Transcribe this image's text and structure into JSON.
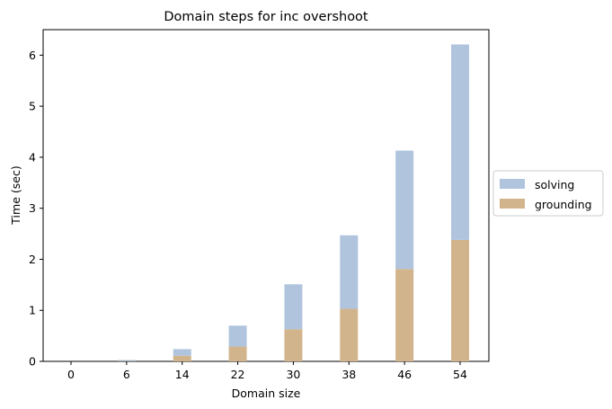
{
  "chart_data": {
    "type": "bar",
    "stacked": true,
    "title": "Domain steps for inc overshoot",
    "xlabel": "Domain size",
    "ylabel": "Time (sec)",
    "categories": [
      "0",
      "6",
      "14",
      "22",
      "30",
      "38",
      "46",
      "54"
    ],
    "ylim": [
      0,
      6.5
    ],
    "yticks": [
      0,
      1,
      2,
      3,
      4,
      5,
      6
    ],
    "grid": false,
    "legend_position": "center-right outside",
    "series": [
      {
        "name": "grounding",
        "color": "#d2b48c",
        "values": [
          0.0,
          0.005,
          0.11,
          0.29,
          0.63,
          1.03,
          1.81,
          2.38
        ]
      },
      {
        "name": "solving",
        "color": "#b0c4de",
        "values": [
          0.0,
          0.02,
          0.13,
          0.41,
          0.88,
          1.44,
          2.32,
          3.83
        ]
      }
    ],
    "legend": [
      "solving",
      "grounding"
    ]
  }
}
